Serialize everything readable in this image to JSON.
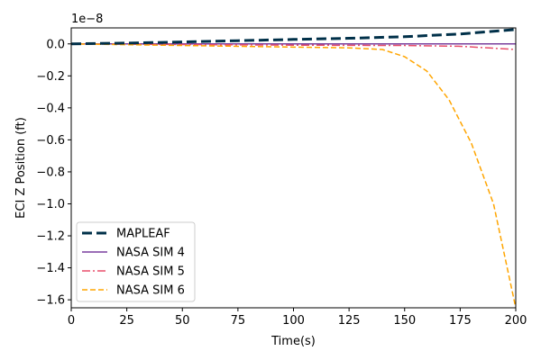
{
  "chart_data": {
    "type": "line",
    "title": "",
    "xlabel": "Time(s)",
    "ylabel": "ECI Z Position (ft)",
    "y_scale_label": "1e−8",
    "xlim": [
      0,
      200
    ],
    "ylim": [
      -1.65,
      0.1
    ],
    "y_multiplier": 1e-08,
    "x_ticks": [
      0,
      25,
      50,
      75,
      100,
      125,
      150,
      175,
      200
    ],
    "y_ticks": [
      0.0,
      -0.2,
      -0.4,
      -0.6,
      -0.8,
      -1.0,
      -1.2,
      -1.4,
      -1.6
    ],
    "y_tick_labels": [
      "0.0",
      "−0.2",
      "−0.4",
      "−0.6",
      "−0.8",
      "−1.0",
      "−1.2",
      "−1.4",
      "−1.6"
    ],
    "grid": false,
    "legend_position": "lower-left",
    "series": [
      {
        "name": "MAPLEAF",
        "color": "#003049",
        "style": "thick-dashed",
        "x": [
          0,
          25,
          50,
          75,
          100,
          125,
          150,
          175,
          200
        ],
        "y": [
          0.0,
          0.005,
          0.012,
          0.02,
          0.028,
          0.035,
          0.045,
          0.062,
          0.09
        ]
      },
      {
        "name": "NASA SIM 4",
        "color": "#7a3e9d",
        "style": "solid",
        "x": [
          0,
          25,
          50,
          75,
          100,
          125,
          150,
          175,
          200
        ],
        "y": [
          0.0,
          0.0,
          0.0,
          0.0,
          0.0,
          0.0,
          0.0,
          0.0,
          0.0
        ]
      },
      {
        "name": "NASA SIM 5",
        "color": "#e84f6b",
        "style": "dashdot",
        "x": [
          0,
          25,
          50,
          75,
          100,
          125,
          150,
          175,
          200
        ],
        "y": [
          0.0,
          -0.002,
          -0.004,
          -0.006,
          -0.008,
          -0.009,
          -0.01,
          -0.015,
          -0.035
        ]
      },
      {
        "name": "NASA SIM 6",
        "color": "#ffa500",
        "style": "dashed",
        "x": [
          0,
          25,
          50,
          75,
          100,
          125,
          140,
          150,
          160,
          170,
          180,
          190,
          200
        ],
        "y": [
          0.0,
          -0.005,
          -0.01,
          -0.015,
          -0.02,
          -0.025,
          -0.035,
          -0.08,
          -0.17,
          -0.35,
          -0.62,
          -1.0,
          -1.65
        ]
      }
    ]
  }
}
